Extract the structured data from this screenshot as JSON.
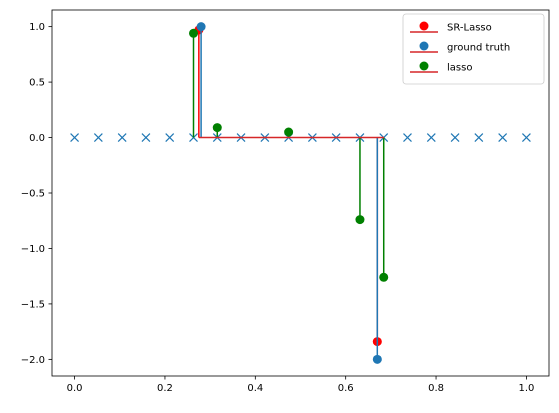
{
  "chart_data": {
    "type": "stem",
    "title": "",
    "xlabel": "",
    "ylabel": "",
    "xlim": [
      -0.05,
      1.05
    ],
    "ylim": [
      -2.15,
      1.15
    ],
    "xticks": [
      {
        "value": 0.0,
        "label": "0.0"
      },
      {
        "value": 0.2,
        "label": "0.2"
      },
      {
        "value": 0.4,
        "label": "0.4"
      },
      {
        "value": 0.6,
        "label": "0.6"
      },
      {
        "value": 0.8,
        "label": "0.8"
      },
      {
        "value": 1.0,
        "label": "1.0"
      }
    ],
    "yticks": [
      {
        "value": 1.0,
        "label": "1.0"
      },
      {
        "value": 0.5,
        "label": "0.5"
      },
      {
        "value": 0.0,
        "label": "0.0"
      },
      {
        "value": -0.5,
        "label": "−0.5"
      },
      {
        "value": -1.0,
        "label": "−1.0"
      },
      {
        "value": -1.5,
        "label": "−1.5"
      },
      {
        "value": -2.0,
        "label": "−2.0"
      }
    ],
    "grid": false,
    "legend_position": "top-right",
    "grid_points": {
      "marker": "x",
      "color": "#1f77b4",
      "x": [
        0.0,
        0.0526,
        0.1053,
        0.1579,
        0.2105,
        0.2632,
        0.3158,
        0.3684,
        0.4211,
        0.4737,
        0.5263,
        0.5789,
        0.6316,
        0.6842,
        0.7368,
        0.7895,
        0.8421,
        0.8947,
        0.9474,
        1.0
      ],
      "y": [
        0,
        0,
        0,
        0,
        0,
        0,
        0,
        0,
        0,
        0,
        0,
        0,
        0,
        0,
        0,
        0,
        0,
        0,
        0,
        0
      ]
    },
    "baseline": {
      "y": 0,
      "x_start": 0.275,
      "x_end": 0.685,
      "color": "#d62728"
    },
    "series": [
      {
        "name": "SR-Lasso",
        "color": "#ff0000",
        "x": [
          0.275,
          0.67
        ],
        "y": [
          0.97,
          -1.84
        ]
      },
      {
        "name": "ground truth",
        "color": "#1f77b4",
        "x": [
          0.28,
          0.67
        ],
        "y": [
          1.0,
          -2.0
        ]
      },
      {
        "name": "lasso",
        "color": "#008000",
        "x": [
          0.2632,
          0.3158,
          0.4737,
          0.6316,
          0.6842
        ],
        "y": [
          0.94,
          0.09,
          0.05,
          -0.74,
          -1.26
        ]
      }
    ]
  }
}
